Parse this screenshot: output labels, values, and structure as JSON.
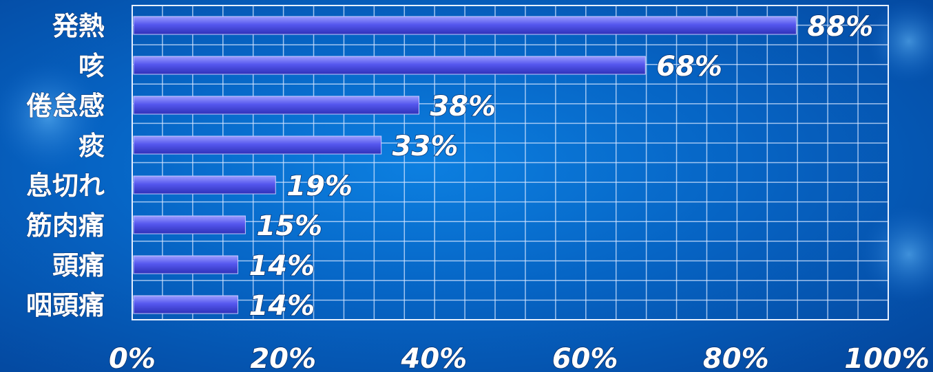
{
  "chart_data": {
    "type": "bar",
    "orientation": "horizontal",
    "categories": [
      "発熱",
      "咳",
      "倦怠感",
      "痰",
      "息切れ",
      "筋肉痛",
      "頭痛",
      "咽頭痛"
    ],
    "values": [
      88,
      68,
      38,
      33,
      19,
      15,
      14,
      14
    ],
    "value_labels": [
      "88%",
      "68%",
      "38%",
      "33%",
      "19%",
      "15%",
      "14%",
      "14%"
    ],
    "x_ticks": [
      "0%",
      "20%",
      "40%",
      "60%",
      "80%",
      "100%"
    ],
    "xlim": [
      0,
      100
    ],
    "grid": true,
    "bar_color": "#5a5cf0",
    "background_color": "#0664c4"
  }
}
